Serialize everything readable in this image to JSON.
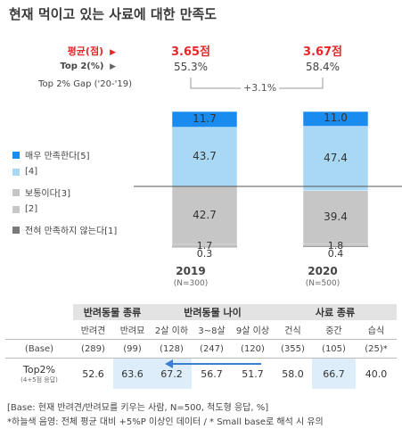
{
  "title": "현재 먹이고 있는 사료에 대한 만족도",
  "row_labels": {
    "avg": "평균(점)",
    "top2": "Top 2(%)",
    "gap": "Top 2% Gap ('20-'19)"
  },
  "columns": [
    {
      "year": "2019",
      "n": "(N=300)",
      "avg": "3.65점",
      "top2": "55.3%"
    },
    {
      "year": "2020",
      "n": "(N=500)",
      "avg": "3.67점",
      "top2": "58.4%"
    }
  ],
  "gap": "+3.1%",
  "colors": {
    "very_satisfied": "#1a8cf0",
    "satisfied": "#a9d8f5",
    "neutral": "#c6c6c6",
    "dissatisfied": "#c6c6c6",
    "very_dissatisfied": "#7a7a7a",
    "accent_red": "#e8252a",
    "highlight": "#ddeefa"
  },
  "chart_data": {
    "type": "bar",
    "stacked": true,
    "categories": [
      "2019",
      "2020"
    ],
    "series": [
      {
        "name": "매우 만족한다[5]",
        "values": [
          11.7,
          11.0
        ]
      },
      {
        "name": "[4]",
        "values": [
          43.7,
          47.4
        ]
      },
      {
        "name": "보통이다[3]",
        "values": [
          42.7,
          39.4
        ]
      },
      {
        "name": "[2]",
        "values": [
          1.7,
          1.8
        ]
      },
      {
        "name": "전혀 만족하지 않는다[1]",
        "values": [
          0.3,
          0.4
        ]
      }
    ],
    "legend": [
      "매우 만족한다[5]",
      "[4]",
      "보통이다[3]",
      "[2]",
      "전혀 만족하지 않는다[1]"
    ],
    "legend_position": "left"
  },
  "table": {
    "groups": [
      "반려동물 종류",
      "반려동물 나이",
      "사료 종류"
    ],
    "subheaders": [
      "반려견",
      "반려묘",
      "2살 이하",
      "3~8살",
      "9살 이상",
      "건식",
      "중간",
      "습식"
    ],
    "base_label": "(Base)",
    "base": [
      "(289)",
      "(99)",
      "(128)",
      "(247)",
      "(120)",
      "(355)",
      "(105)",
      "(25)*"
    ],
    "value_label": "Top2%",
    "value_sublabel": "(4+5점 응답)",
    "values": [
      "52.6",
      "63.6",
      "67.2",
      "56.7",
      "51.7",
      "58.0",
      "66.7",
      "40.0"
    ],
    "highlighted": [
      false,
      true,
      true,
      false,
      false,
      false,
      true,
      false
    ]
  },
  "notes": [
    "[Base: 현재 반려견/반려묘를 키우는 사람, N=500, 척도형 응답, %]",
    "*하늘색 음영: 전체 평균 대비 +5%P 이상인 데이터 / * Small base로 해석 시 유의"
  ]
}
